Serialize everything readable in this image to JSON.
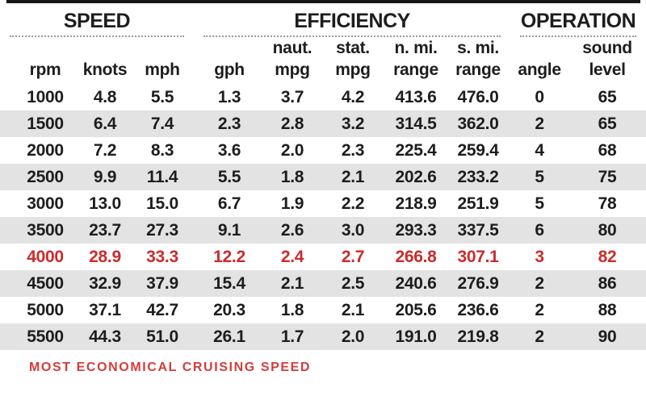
{
  "colors": {
    "highlight": "#cb2b2b",
    "legend_red": "#d43c3c",
    "row_alt": "#e3e3e3",
    "ink": "#1d1d1d",
    "top_rule": "#161616",
    "dotted_rule": "#9a9a9a"
  },
  "legend": {
    "text": "MOST ECONOMICAL CRUISING SPEED"
  },
  "table": {
    "groups": [
      {
        "label": "SPEED",
        "span": 3
      },
      {
        "label": "EFFICIENCY",
        "span": 5
      },
      {
        "label": "OPERATION",
        "span": 2
      }
    ],
    "columns": [
      {
        "key": "rpm",
        "top": "",
        "bottom": "rpm"
      },
      {
        "key": "knots",
        "top": "",
        "bottom": "knots"
      },
      {
        "key": "mph",
        "top": "",
        "bottom": "mph"
      },
      {
        "key": "gph",
        "top": "",
        "bottom": "gph"
      },
      {
        "key": "naut-mpg",
        "top": "naut.",
        "bottom": "mpg"
      },
      {
        "key": "stat-mpg",
        "top": "stat.",
        "bottom": "mpg"
      },
      {
        "key": "nmi-range",
        "top": "n. mi.",
        "bottom": "range"
      },
      {
        "key": "smi-range",
        "top": "s. mi.",
        "bottom": "range"
      },
      {
        "key": "angle",
        "top": "",
        "bottom": "angle"
      },
      {
        "key": "sound-level",
        "top": "sound",
        "bottom": "level"
      }
    ],
    "rows": [
      {
        "highlight": false,
        "values": [
          "1000",
          "4.8",
          "5.5",
          "1.3",
          "3.7",
          "4.2",
          "413.6",
          "476.0",
          "0",
          "65"
        ]
      },
      {
        "highlight": false,
        "values": [
          "1500",
          "6.4",
          "7.4",
          "2.3",
          "2.8",
          "3.2",
          "314.5",
          "362.0",
          "2",
          "65"
        ]
      },
      {
        "highlight": false,
        "values": [
          "2000",
          "7.2",
          "8.3",
          "3.6",
          "2.0",
          "2.3",
          "225.4",
          "259.4",
          "4",
          "68"
        ]
      },
      {
        "highlight": false,
        "values": [
          "2500",
          "9.9",
          "11.4",
          "5.5",
          "1.8",
          "2.1",
          "202.6",
          "233.2",
          "5",
          "75"
        ]
      },
      {
        "highlight": false,
        "values": [
          "3000",
          "13.0",
          "15.0",
          "6.7",
          "1.9",
          "2.2",
          "218.9",
          "251.9",
          "5",
          "78"
        ]
      },
      {
        "highlight": false,
        "values": [
          "3500",
          "23.7",
          "27.3",
          "9.1",
          "2.6",
          "3.0",
          "293.3",
          "337.5",
          "6",
          "80"
        ]
      },
      {
        "highlight": true,
        "values": [
          "4000",
          "28.9",
          "33.3",
          "12.2",
          "2.4",
          "2.7",
          "266.8",
          "307.1",
          "3",
          "82"
        ]
      },
      {
        "highlight": false,
        "values": [
          "4500",
          "32.9",
          "37.9",
          "15.4",
          "2.1",
          "2.5",
          "240.6",
          "276.9",
          "2",
          "86"
        ]
      },
      {
        "highlight": false,
        "values": [
          "5000",
          "37.1",
          "42.7",
          "20.3",
          "1.8",
          "2.1",
          "205.6",
          "236.6",
          "2",
          "88"
        ]
      },
      {
        "highlight": false,
        "values": [
          "5500",
          "44.3",
          "51.0",
          "26.1",
          "1.7",
          "2.0",
          "191.0",
          "219.8",
          "2",
          "90"
        ]
      }
    ]
  },
  "chart_data": {
    "type": "table",
    "groups": [
      "SPEED",
      "EFFICIENCY",
      "OPERATION"
    ],
    "columns": [
      "rpm",
      "knots",
      "mph",
      "gph",
      "naut. mpg",
      "stat. mpg",
      "n. mi. range",
      "s. mi. range",
      "angle",
      "sound level"
    ],
    "rows": [
      [
        1000,
        4.8,
        5.5,
        1.3,
        3.7,
        4.2,
        413.6,
        476.0,
        0,
        65
      ],
      [
        1500,
        6.4,
        7.4,
        2.3,
        2.8,
        3.2,
        314.5,
        362.0,
        2,
        65
      ],
      [
        2000,
        7.2,
        8.3,
        3.6,
        2.0,
        2.3,
        225.4,
        259.4,
        4,
        68
      ],
      [
        2500,
        9.9,
        11.4,
        5.5,
        1.8,
        2.1,
        202.6,
        233.2,
        5,
        75
      ],
      [
        3000,
        13.0,
        15.0,
        6.7,
        1.9,
        2.2,
        218.9,
        251.9,
        5,
        78
      ],
      [
        3500,
        23.7,
        27.3,
        9.1,
        2.6,
        3.0,
        293.3,
        337.5,
        6,
        80
      ],
      [
        4000,
        28.9,
        33.3,
        12.2,
        2.4,
        2.7,
        266.8,
        307.1,
        3,
        82
      ],
      [
        4500,
        32.9,
        37.9,
        15.4,
        2.1,
        2.5,
        240.6,
        276.9,
        2,
        86
      ],
      [
        5000,
        37.1,
        42.7,
        20.3,
        1.8,
        2.1,
        205.6,
        236.6,
        2,
        88
      ],
      [
        5500,
        44.3,
        51.0,
        26.1,
        1.7,
        2.0,
        191.0,
        219.8,
        2,
        90
      ]
    ],
    "highlight_row_rpm": 4000,
    "highlight_note": "MOST ECONOMICAL CRUISING SPEED"
  }
}
